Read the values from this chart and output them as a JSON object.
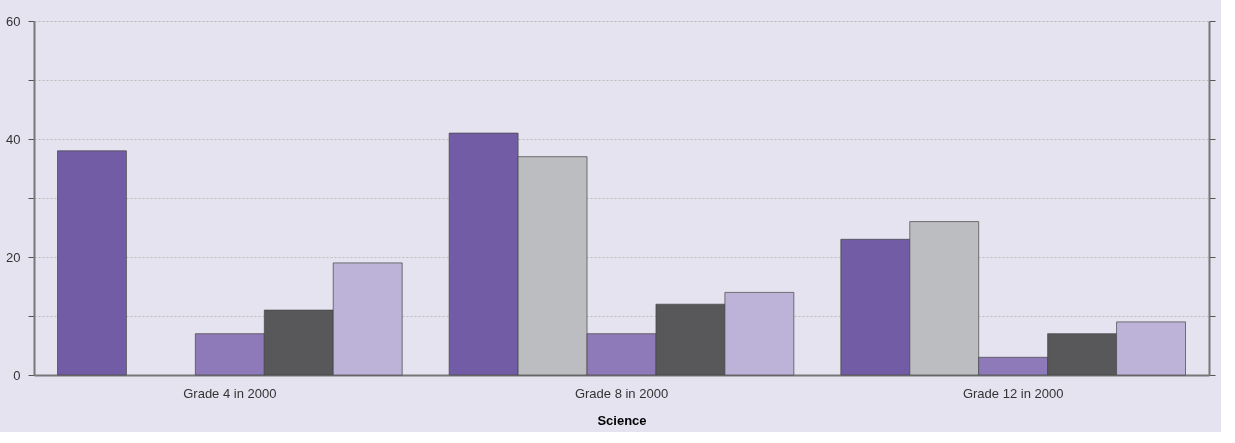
{
  "chart_data": {
    "type": "bar",
    "xlabel": "Science",
    "categories": [
      "Grade 4 in 2000",
      "Grade 8 in 2000",
      "Grade 12 in 2000"
    ],
    "series": [
      {
        "color": "#735ca6",
        "values": [
          38,
          41,
          23
        ]
      },
      {
        "color": "#bcbdc0",
        "values": [
          null,
          37,
          26
        ]
      },
      {
        "color": "#8e7ab8",
        "values": [
          7,
          7,
          3
        ]
      },
      {
        "color": "#58585a",
        "values": [
          11,
          12,
          7
        ]
      },
      {
        "color": "#bdb2d8",
        "values": [
          19,
          14,
          9
        ]
      }
    ],
    "ylim": [
      0,
      60
    ],
    "yticks": [
      0,
      {
        "value": 10,
        "label": null
      },
      20,
      {
        "value": 30,
        "label": null
      },
      40,
      {
        "value": 50,
        "label": null
      },
      60
    ],
    "grid": "y",
    "legend": false
  }
}
